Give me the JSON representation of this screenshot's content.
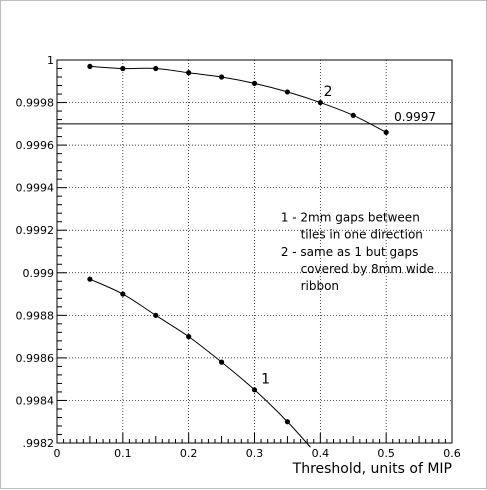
{
  "chart_data": {
    "type": "line",
    "title": "",
    "xlabel": "Threshold, units of MIP",
    "ylabel": "",
    "xlim": [
      0,
      0.6
    ],
    "ylim": [
      0.9982,
      1.0
    ],
    "grid": true,
    "x_ticks": [
      0,
      0.1,
      0.2,
      0.3,
      0.4,
      0.5,
      0.6
    ],
    "x_tick_labels": [
      "0",
      "0.1",
      "0.2",
      "0.3",
      "0.4",
      "0.5",
      "0.6"
    ],
    "y_ticks": [
      0.9982,
      0.9984,
      0.9986,
      0.9988,
      0.999,
      0.9992,
      0.9994,
      0.9996,
      0.9998,
      1.0
    ],
    "y_tick_labels": [
      ".9982",
      "0.9984",
      "0.9986",
      "0.9988",
      "0.999",
      "0.9992",
      "0.9994",
      "0.9996",
      "0.9998",
      "1"
    ],
    "series": [
      {
        "name": "1",
        "x": [
          0.05,
          0.1,
          0.15,
          0.2,
          0.25,
          0.3,
          0.35
        ],
        "y": [
          0.99897,
          0.9989,
          0.9988,
          0.9987,
          0.99858,
          0.99845,
          0.9983
        ],
        "curve_end": [
          0.385,
          0.99818
        ]
      },
      {
        "name": "2",
        "x": [
          0.05,
          0.1,
          0.15,
          0.2,
          0.25,
          0.3,
          0.35,
          0.4,
          0.45,
          0.5
        ],
        "y": [
          0.99997,
          0.99996,
          0.99996,
          0.99994,
          0.99992,
          0.99989,
          0.99985,
          0.9998,
          0.99974,
          0.99966
        ]
      }
    ],
    "reference_line": {
      "y": 0.9997,
      "label": "0.9997"
    },
    "annotations": [
      {
        "text": "1 - 2mm gaps between",
        "x": 0.34,
        "y": 0.99924
      },
      {
        "text": "tiles in one direction",
        "x": 0.37,
        "y": 0.99916
      },
      {
        "text": "2 - same as 1 but gaps",
        "x": 0.34,
        "y": 0.99908
      },
      {
        "text": "covered by 8mm wide",
        "x": 0.37,
        "y": 0.999
      },
      {
        "text": "ribbon",
        "x": 0.37,
        "y": 0.99892
      }
    ],
    "curve_labels": [
      {
        "text": "1",
        "x": 0.31,
        "y": 0.99848
      },
      {
        "text": "2",
        "x": 0.405,
        "y": 0.99983
      }
    ]
  }
}
